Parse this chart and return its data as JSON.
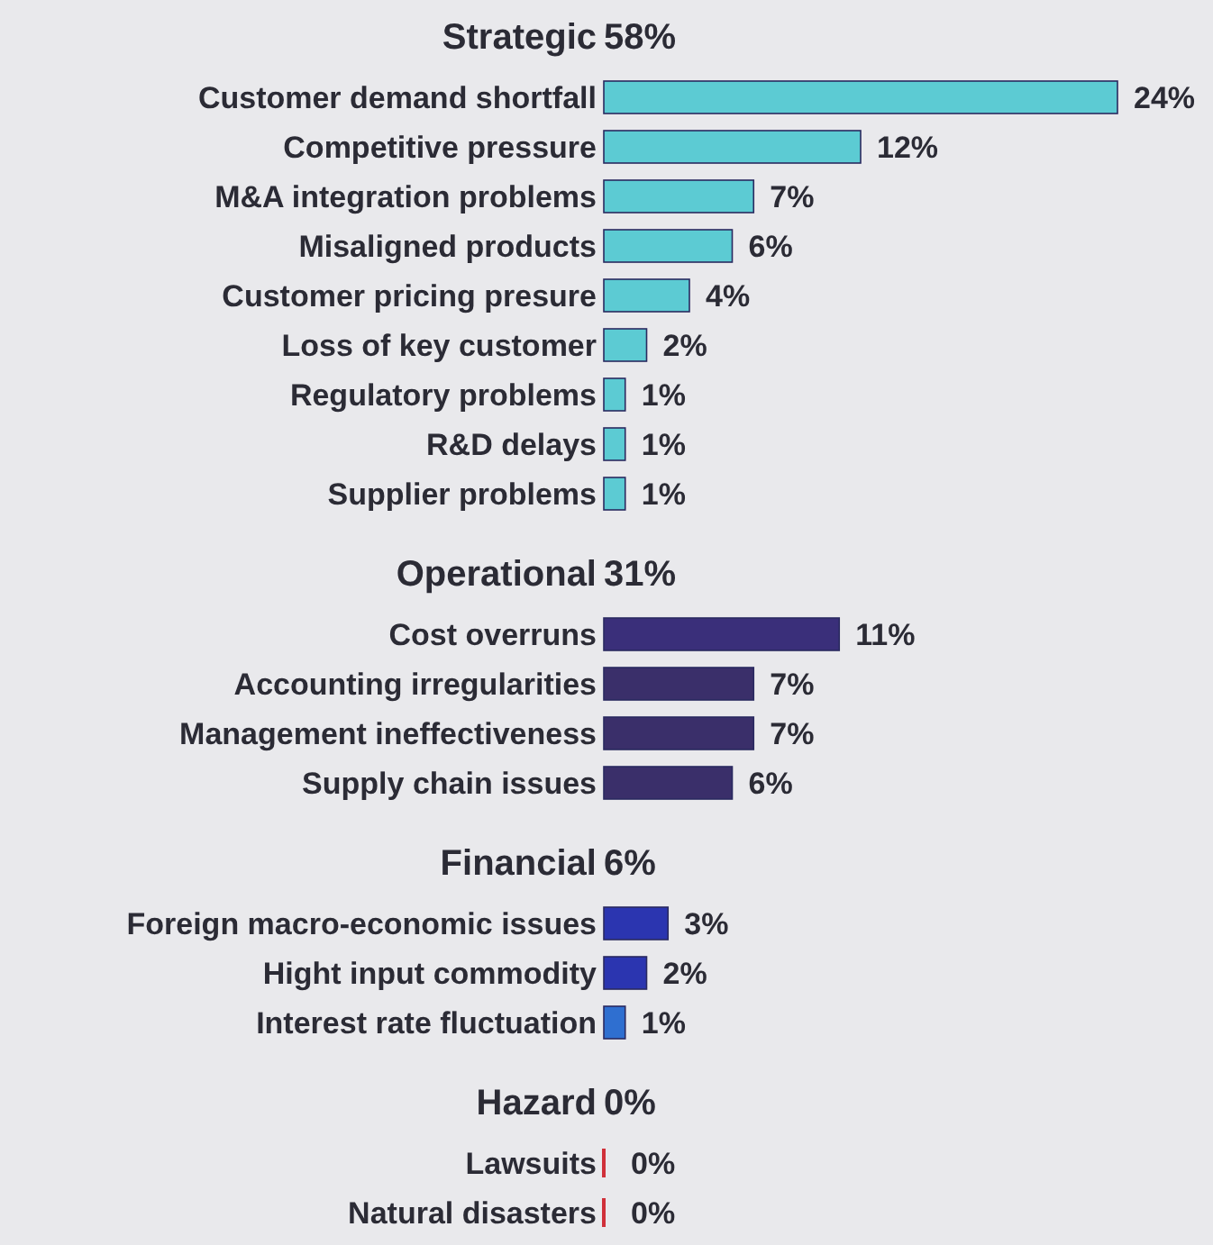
{
  "chart_data": {
    "type": "bar",
    "orientation": "horizontal",
    "categories": [
      "Strategic",
      "Customer demand shortfall",
      "Competitive pressure",
      "M&A integration problems",
      "Misaligned products",
      "Customer pricing  presure",
      "Loss of key customer",
      "Regulatory problems",
      "R&D delays",
      "Supplier problems",
      "Operational",
      "Cost overruns",
      "Accounting irregularities",
      "Management ineffectiveness",
      "Supply chain issues",
      "Financial",
      "Foreign macro-economic issues",
      "Hight input commodity",
      "Interest rate fluctuation",
      "Hazard",
      "Lawsuits",
      "Natural disasters"
    ],
    "values": [
      null,
      24,
      12,
      7,
      6,
      4,
      2,
      1,
      1,
      1,
      null,
      11,
      7,
      7,
      6,
      null,
      3,
      2,
      1,
      null,
      0,
      0
    ],
    "value_labels": [
      "58%",
      "24%",
      "12%",
      "7%",
      "6%",
      "4%",
      "2%",
      "1%",
      "1%",
      "1%",
      "31%",
      "11%",
      "7%",
      "7%",
      "6%",
      "6%",
      "3%",
      "2%",
      "1%",
      "0%",
      "0%",
      "0%"
    ],
    "colors": [
      null,
      "#5ccbd3",
      "#5ccbd3",
      "#5ccbd3",
      "#5ccbd3",
      "#5ccbd3",
      "#5ccbd3",
      "#5ccbd3",
      "#5ccbd3",
      "#5ccbd3",
      null,
      "#3a2f7a",
      "#3a2f6a",
      "#3a2f6a",
      "#3a2f6a",
      null,
      "#2b35b0",
      "#2b35b0",
      "#2f6fd0",
      null,
      "#d0303a",
      "#d0303a"
    ]
  }
}
